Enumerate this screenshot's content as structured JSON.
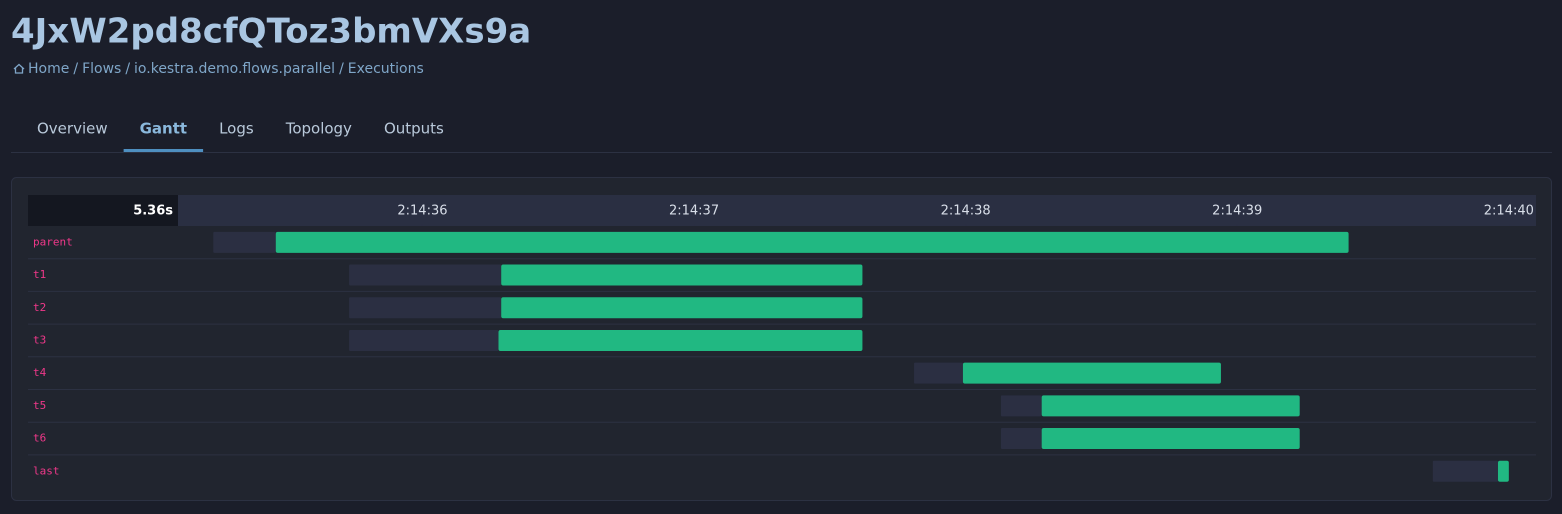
{
  "header": {
    "title": "4JxW2pd8cfQToz3bmVXs9a",
    "breadcrumb": [
      "Home",
      "Flows",
      "io.kestra.demo.flows.parallel",
      "Executions"
    ],
    "separator": "/"
  },
  "tabs": [
    {
      "label": "Overview",
      "active": false
    },
    {
      "label": "Gantt",
      "active": true
    },
    {
      "label": "Logs",
      "active": false
    },
    {
      "label": "Topology",
      "active": false
    },
    {
      "label": "Outputs",
      "active": false
    }
  ],
  "chart_data": {
    "type": "gantt",
    "duration": "5.36s",
    "xlim": [
      35.1,
      40.1
    ],
    "xticks": [
      {
        "value": 36,
        "label": "2:14:36"
      },
      {
        "value": 37,
        "label": "2:14:37"
      },
      {
        "value": 38,
        "label": "2:14:38"
      },
      {
        "value": 39,
        "label": "2:14:39"
      },
      {
        "value": 40,
        "label": "2:14:40"
      }
    ],
    "waiting_color": "#2b2f42",
    "running_color": "#21b882",
    "tasks": [
      {
        "name": "parent",
        "created": 35.23,
        "started": 35.46,
        "ended": 39.41
      },
      {
        "name": "t1",
        "created": 35.73,
        "started": 36.29,
        "ended": 37.62
      },
      {
        "name": "t2",
        "created": 35.73,
        "started": 36.29,
        "ended": 37.62
      },
      {
        "name": "t3",
        "created": 35.73,
        "started": 36.28,
        "ended": 37.62
      },
      {
        "name": "t4",
        "created": 37.81,
        "started": 37.99,
        "ended": 38.94
      },
      {
        "name": "t5",
        "created": 38.13,
        "started": 38.28,
        "ended": 39.23
      },
      {
        "name": "t6",
        "created": 38.13,
        "started": 38.28,
        "ended": 39.23
      },
      {
        "name": "last",
        "created": 39.72,
        "started": 39.96,
        "ended": 40.0
      }
    ]
  }
}
